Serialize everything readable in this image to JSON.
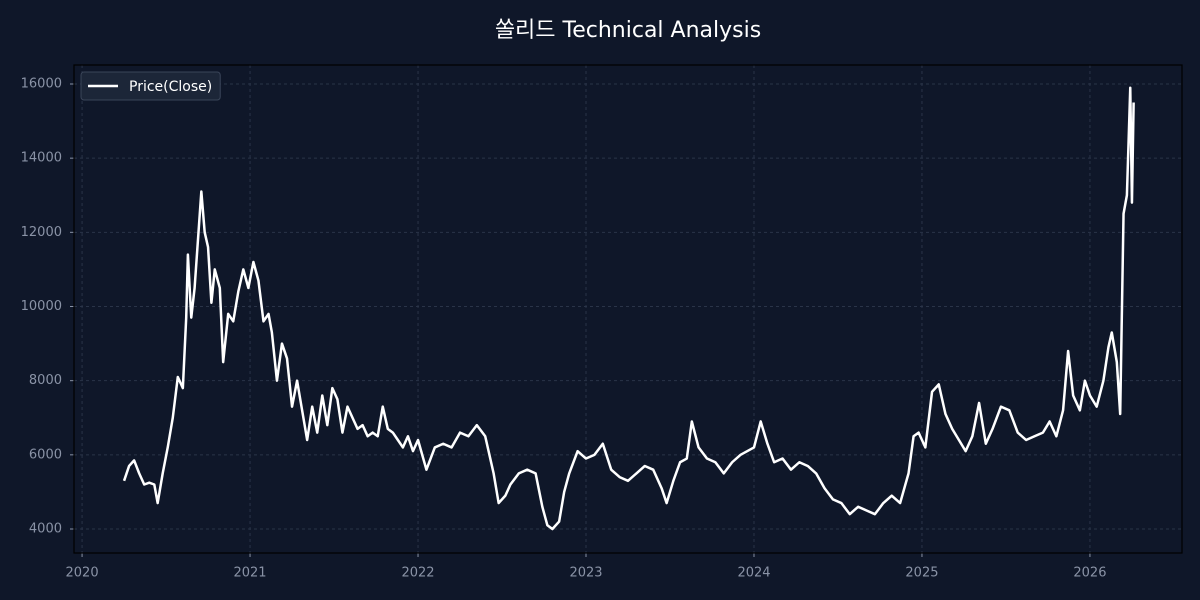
{
  "chart_data": {
    "type": "line",
    "title": "쏠리드 Technical Analysis",
    "x": [
      2020.25,
      2020.28,
      2020.31,
      2020.34,
      2020.37,
      2020.4,
      2020.43,
      2020.45,
      2020.48,
      2020.51,
      2020.54,
      2020.57,
      2020.6,
      2020.62,
      2020.63,
      2020.65,
      2020.67,
      2020.69,
      2020.71,
      2020.73,
      2020.75,
      2020.77,
      2020.79,
      2020.82,
      2020.84,
      2020.87,
      2020.9,
      2020.93,
      2020.96,
      2020.99,
      2021.02,
      2021.05,
      2021.08,
      2021.11,
      2021.13,
      2021.16,
      2021.19,
      2021.22,
      2021.25,
      2021.28,
      2021.31,
      2021.34,
      2021.37,
      2021.4,
      2021.43,
      2021.46,
      2021.49,
      2021.52,
      2021.55,
      2021.58,
      2021.61,
      2021.64,
      2021.67,
      2021.7,
      2021.73,
      2021.76,
      2021.79,
      2021.82,
      2021.85,
      2021.88,
      2021.91,
      2021.94,
      2021.97,
      2022.0,
      2022.05,
      2022.1,
      2022.15,
      2022.2,
      2022.25,
      2022.3,
      2022.35,
      2022.4,
      2022.45,
      2022.48,
      2022.52,
      2022.55,
      2022.6,
      2022.65,
      2022.7,
      2022.74,
      2022.77,
      2022.8,
      2022.84,
      2022.87,
      2022.9,
      2022.95,
      2023.0,
      2023.05,
      2023.1,
      2023.15,
      2023.2,
      2023.25,
      2023.3,
      2023.35,
      2023.4,
      2023.45,
      2023.48,
      2023.52,
      2023.56,
      2023.6,
      2023.63,
      2023.67,
      2023.72,
      2023.77,
      2023.82,
      2023.87,
      2023.92,
      2024.0,
      2024.04,
      2024.08,
      2024.12,
      2024.17,
      2024.22,
      2024.27,
      2024.32,
      2024.37,
      2024.42,
      2024.47,
      2024.52,
      2024.57,
      2024.62,
      2024.67,
      2024.72,
      2024.77,
      2024.82,
      2024.87,
      2024.92,
      2024.95,
      2024.98,
      2025.02,
      2025.06,
      2025.1,
      2025.14,
      2025.18,
      2025.22,
      2025.26,
      2025.3,
      2025.34,
      2025.38,
      2025.42,
      2025.47,
      2025.52,
      2025.57,
      2025.62,
      2025.67,
      2025.72,
      2025.76,
      2025.8,
      2025.84,
      2025.87,
      2025.9,
      2025.94,
      2025.97,
      2026.0,
      2026.04,
      2026.08,
      2026.11,
      2026.13,
      2026.16,
      2026.18,
      2026.2,
      2026.22,
      2026.24,
      2026.25,
      2026.26
    ],
    "series": [
      {
        "name": "Price(Close)",
        "color": "#ffffff",
        "values": [
          5300,
          5700,
          5850,
          5500,
          5200,
          5250,
          5200,
          4700,
          5500,
          6200,
          7000,
          8100,
          7800,
          9700,
          11400,
          9700,
          10500,
          11800,
          13100,
          12000,
          11600,
          10100,
          11000,
          10500,
          8500,
          9800,
          9600,
          10400,
          11000,
          10500,
          11200,
          10700,
          9600,
          9800,
          9300,
          8000,
          9000,
          8600,
          7300,
          8000,
          7200,
          6400,
          7300,
          6600,
          7600,
          6800,
          7800,
          7500,
          6600,
          7300,
          7000,
          6700,
          6800,
          6500,
          6600,
          6500,
          7300,
          6700,
          6600,
          6400,
          6200,
          6500,
          6100,
          6400,
          5600,
          6200,
          6300,
          6200,
          6600,
          6500,
          6800,
          6500,
          5500,
          4700,
          4900,
          5200,
          5500,
          5600,
          5500,
          4600,
          4100,
          4000,
          4200,
          5000,
          5500,
          6100,
          5900,
          6000,
          6300,
          5600,
          5400,
          5300,
          5500,
          5700,
          5600,
          5100,
          4700,
          5300,
          5800,
          5900,
          6900,
          6200,
          5900,
          5800,
          5500,
          5800,
          6000,
          6200,
          6900,
          6300,
          5800,
          5900,
          5600,
          5800,
          5700,
          5500,
          5100,
          4800,
          4700,
          4400,
          4600,
          4500,
          4400,
          4700,
          4900,
          4700,
          5500,
          6500,
          6600,
          6200,
          7700,
          7900,
          7100,
          6700,
          6400,
          6100,
          6500,
          7400,
          6300,
          6700,
          7300,
          7200,
          6600,
          6400,
          6500,
          6600,
          6900,
          6500,
          7200,
          8800,
          7600,
          7200,
          8000,
          7600,
          7300,
          8000,
          8900,
          9300,
          8500,
          7100,
          12500,
          13000,
          15900,
          12800,
          15500
        ]
      }
    ],
    "xlim": [
      2019.952,
      2026.548
    ],
    "xticks": [
      2020,
      2021,
      2022,
      2023,
      2024,
      2025,
      2026
    ],
    "ylim": [
      3353,
      16512
    ],
    "yticks": [
      4000,
      6000,
      8000,
      10000,
      12000,
      14000,
      16000
    ],
    "grid": true,
    "legend": "upper left"
  }
}
